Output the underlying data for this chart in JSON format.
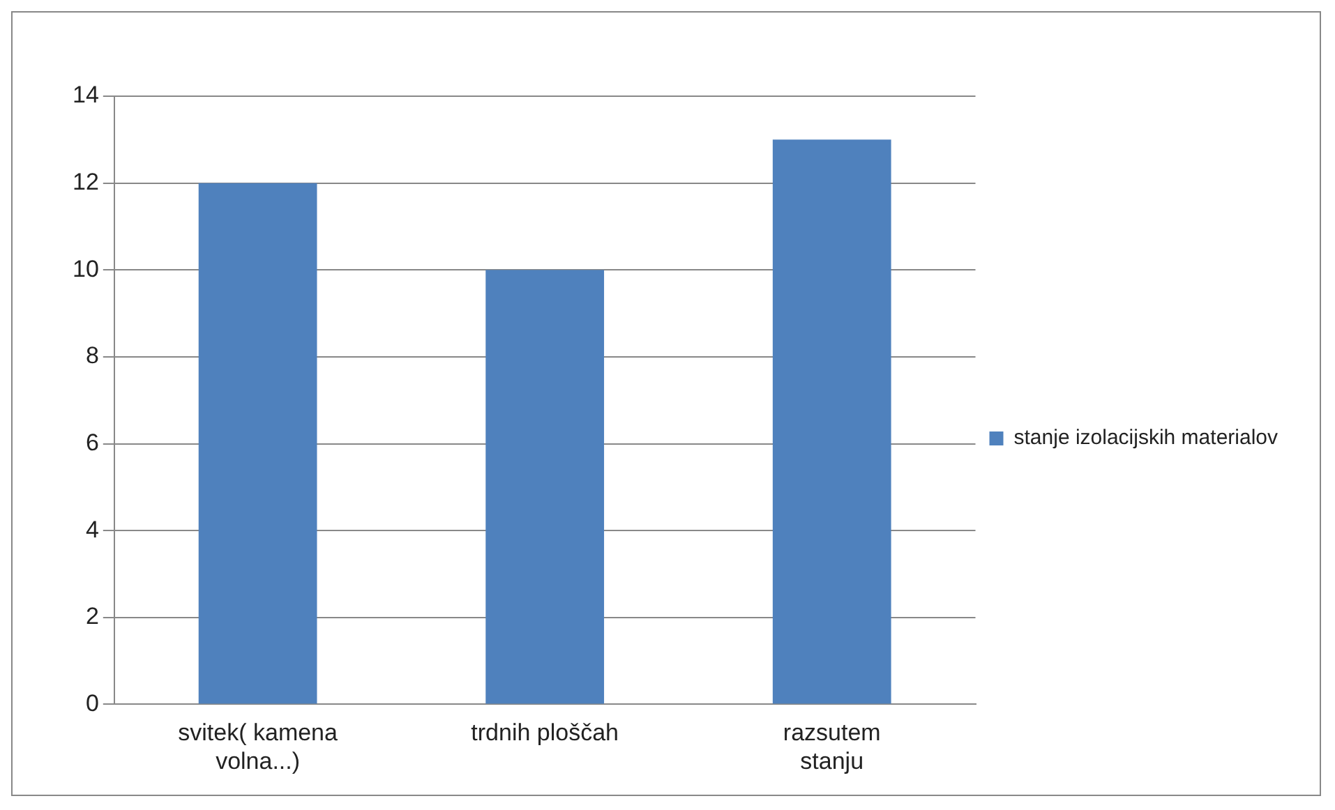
{
  "chart_data": {
    "type": "bar",
    "categories": [
      "svitek( kamena volna...)",
      "trdnih ploščah",
      "razsutem stanju"
    ],
    "series": [
      {
        "name": "stanje izolacijskih materialov",
        "color": "#4f81bd",
        "values": [
          12,
          10,
          13
        ]
      }
    ],
    "ylim": [
      0,
      14
    ],
    "yticks": [
      0,
      2,
      4,
      6,
      8,
      10,
      12,
      14
    ],
    "grid": "y",
    "legend": "right"
  }
}
